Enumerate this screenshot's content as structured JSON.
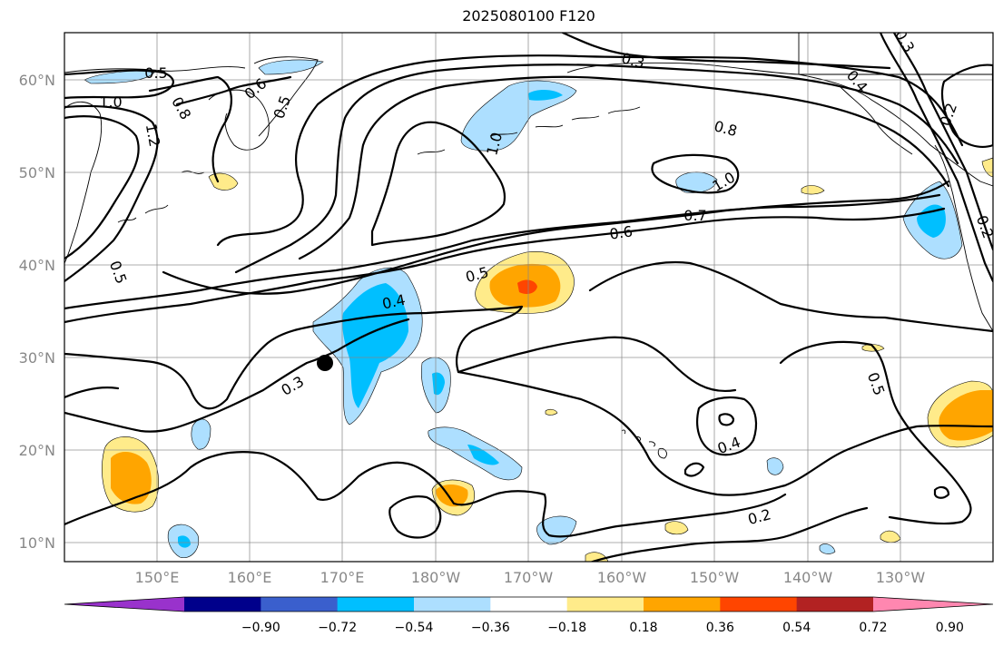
{
  "title": "2025080100 F120",
  "longitude_labels": [
    "150°E",
    "160°E",
    "170°E",
    "180°W",
    "170°W",
    "160°W",
    "150°W",
    "140°W",
    "130°W"
  ],
  "latitude_labels": [
    "10°N",
    "20°N",
    "30°N",
    "40°N",
    "50°N",
    "60°N"
  ],
  "colorbar": {
    "tick_labels": [
      "−0.90",
      "−0.72",
      "−0.54",
      "−0.36",
      "−0.18",
      "0.18",
      "0.36",
      "0.54",
      "0.72",
      "0.90"
    ],
    "colors": [
      "#9932CC",
      "#00008B",
      "#3A5FCD",
      "#00BFFF",
      "#ADDFFF",
      "#FFFFFF",
      "#FFEB8A",
      "#FFA500",
      "#FF4500",
      "#B22222",
      "#FF87B0"
    ]
  },
  "contour_labels": [
    "0.5",
    "1.0",
    "0.8",
    "1.2",
    "0.6",
    "0.5",
    "0.3",
    "1.0",
    "0.8",
    "1.0",
    "0.7",
    "0.6",
    "0.5",
    "0.4",
    "0.3",
    "0.4",
    "0.2",
    "0.5",
    "0.5",
    "0.2",
    "0.2",
    "0.4",
    "0.3"
  ],
  "marker": {
    "lon": 172,
    "lat": 29.5,
    "name": "point marker"
  }
}
